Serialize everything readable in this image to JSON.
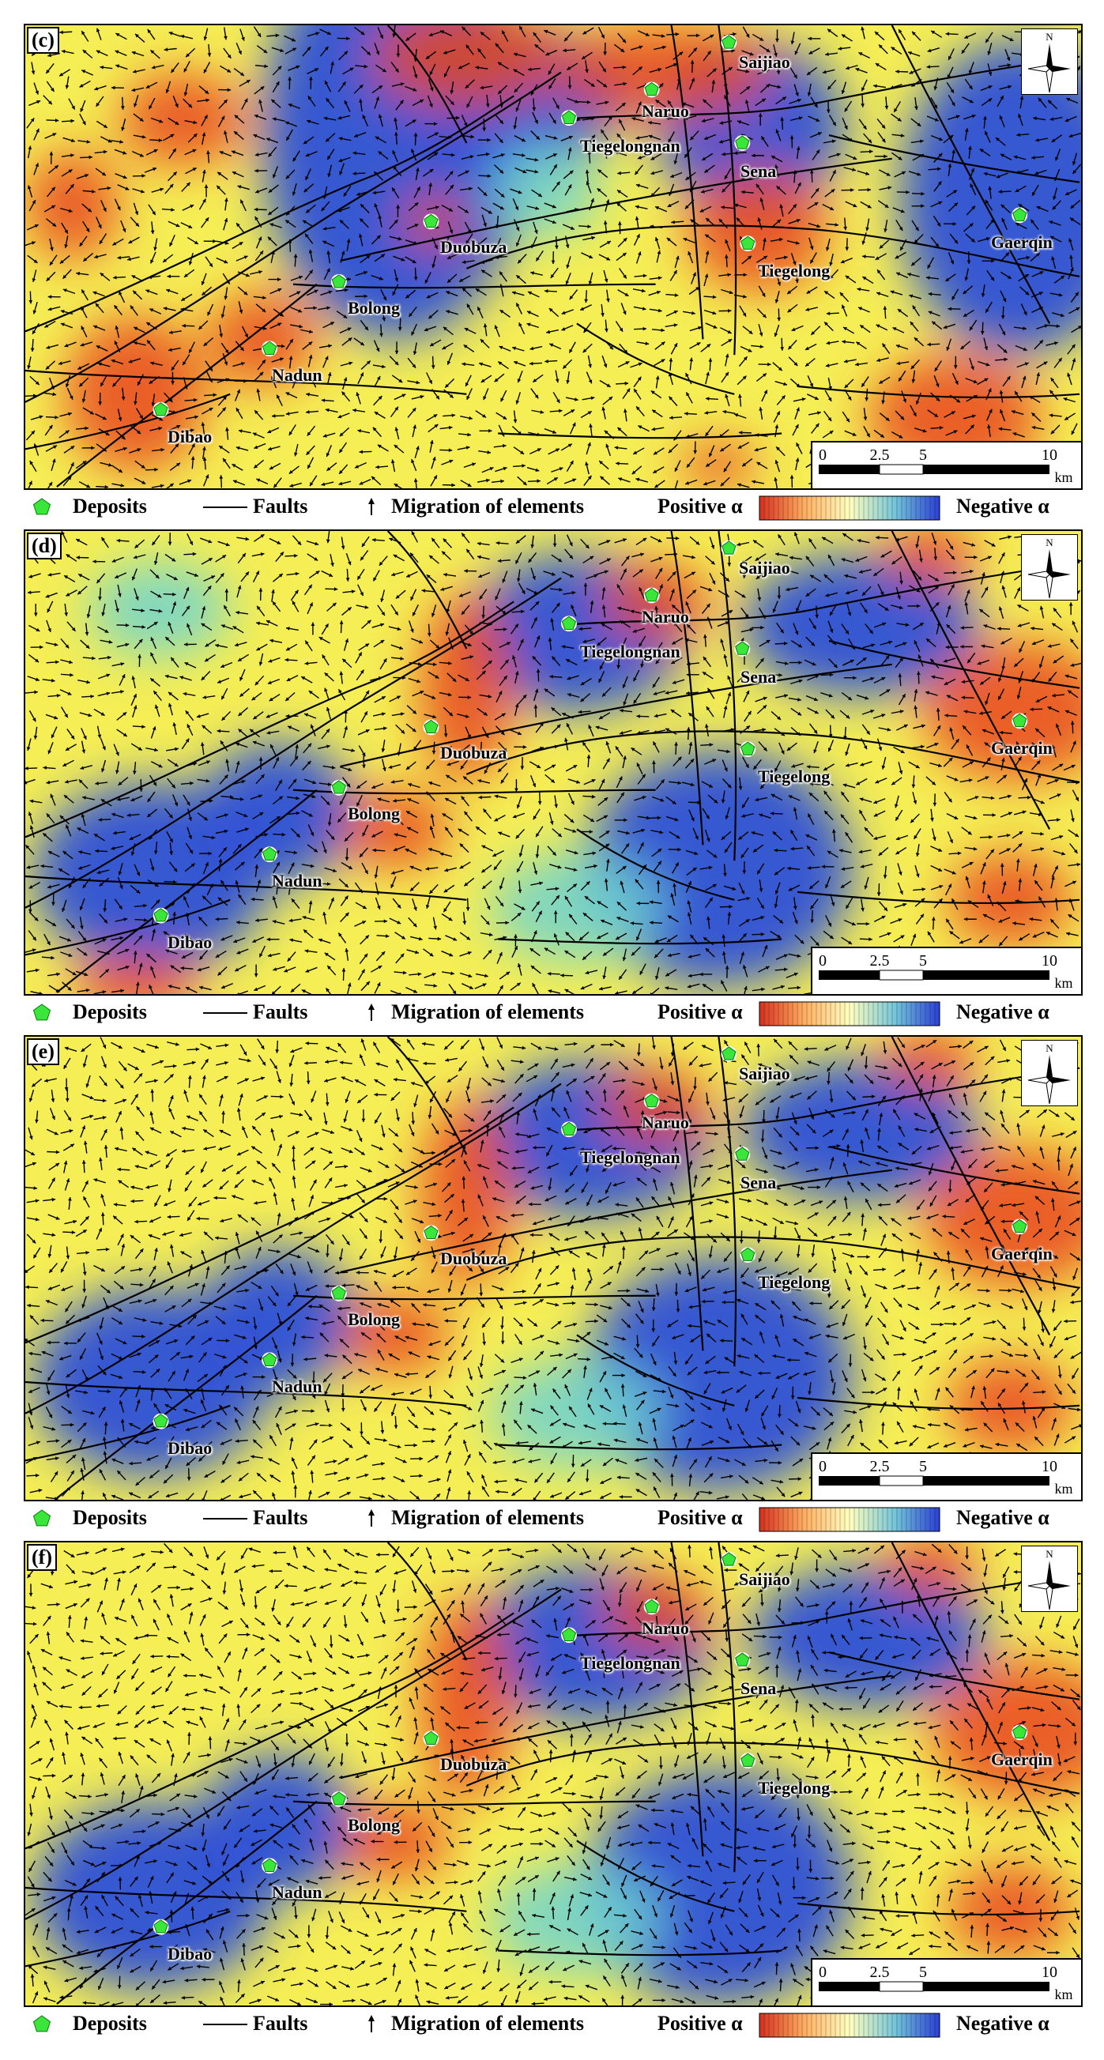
{
  "panels": [
    {
      "label": "(c)",
      "variant": 0
    },
    {
      "label": "(d)",
      "variant": 1
    },
    {
      "label": "(e)",
      "variant": 2
    },
    {
      "label": "(f)",
      "variant": 3
    }
  ],
  "deposits": [
    {
      "name": "Saijiao"
    },
    {
      "name": "Naruo"
    },
    {
      "name": "Tiegelongnan"
    },
    {
      "name": "Sena"
    },
    {
      "name": "Duobuza"
    },
    {
      "name": "Gaerqin"
    },
    {
      "name": "Tiegelong"
    },
    {
      "name": "Bolong"
    },
    {
      "name": "Nadun"
    },
    {
      "name": "Dibao"
    }
  ],
  "north_label": "N",
  "scale": {
    "ticks": [
      "0",
      "2.5",
      "5",
      "10"
    ],
    "unit": "km"
  },
  "legend": {
    "deposits_label": "Deposits",
    "faults_label": "Faults",
    "migration_label": "Migration of elements",
    "positive_label": "Positive α",
    "negative_label": "Negative α"
  },
  "colors": {
    "positive": "#e8471c",
    "neutral": "#f5ee55",
    "negative": "#2d4fd8",
    "deposit": "#39e639"
  }
}
